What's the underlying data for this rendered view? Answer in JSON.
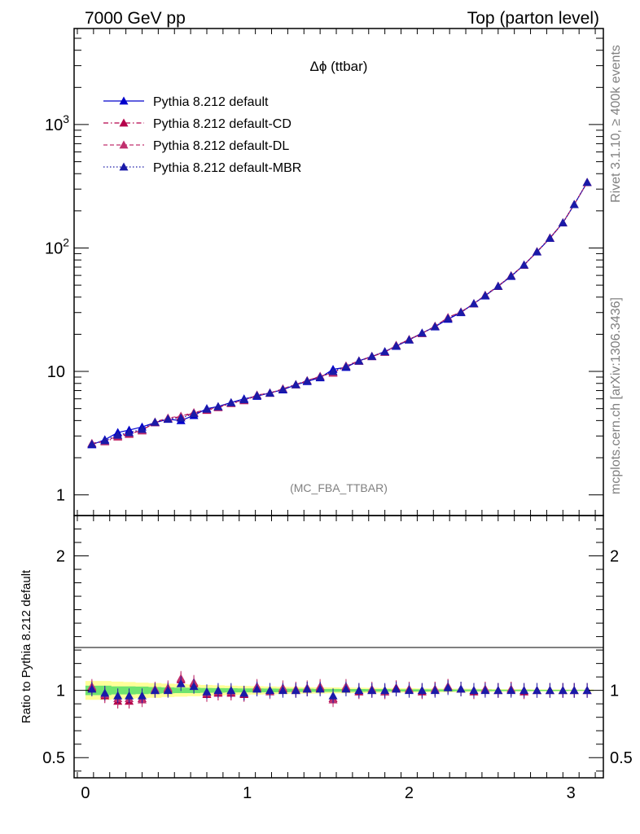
{
  "header": {
    "left": "7000 GeV pp",
    "right": "Top (parton level)"
  },
  "side_labels": {
    "rivet": "Rivet 3.1.10, ≥ 400k events",
    "mcplots": "mcplots.cern.ch [arXiv:1306.3436]"
  },
  "chart_data": {
    "type": "line",
    "title": "Δϕ (ttbar)",
    "annotation": "(MC_FBA_TTBAR)",
    "xlabel": "",
    "ylabel": "",
    "ratio_ylabel": "Ratio to Pythia 8.212 default",
    "yscale": "log",
    "xlim": [
      -0.07,
      3.2
    ],
    "ylim": [
      0.68,
      6000
    ],
    "ratio_ylim": [
      0.35,
      2.3
    ],
    "x_ticks": [
      "0",
      "1",
      "2",
      "3"
    ],
    "y_ticks": [
      {
        "value": 1,
        "label": "1"
      },
      {
        "value": 10,
        "label": "10"
      },
      {
        "value": 100,
        "label": "10",
        "exp": "2"
      },
      {
        "value": 1000,
        "label": "10",
        "exp": "3"
      }
    ],
    "ratio_y_ticks": [
      "0.5",
      "1",
      "2"
    ],
    "legend_position": "top-left",
    "x": [
      0.04,
      0.12,
      0.2,
      0.27,
      0.35,
      0.43,
      0.51,
      0.59,
      0.67,
      0.75,
      0.82,
      0.9,
      0.98,
      1.06,
      1.14,
      1.22,
      1.3,
      1.37,
      1.45,
      1.53,
      1.61,
      1.69,
      1.77,
      1.85,
      1.92,
      2.0,
      2.08,
      2.16,
      2.24,
      2.32,
      2.4,
      2.47,
      2.55,
      2.63,
      2.71,
      2.79,
      2.87,
      2.95,
      3.02,
      3.1
    ],
    "series": [
      {
        "name": "Pythia 8.212 default",
        "color": "#0000cc",
        "dash": "solid",
        "values": [
          2.55,
          2.8,
          3.2,
          3.35,
          3.55,
          3.85,
          4.1,
          4.0,
          4.4,
          5.0,
          5.2,
          5.6,
          6.0,
          6.3,
          6.7,
          7.1,
          7.8,
          8.3,
          8.9,
          10.4,
          10.8,
          12.2,
          13.2,
          14.5,
          16.0,
          18.0,
          20.5,
          23.0,
          26.5,
          30.0,
          35.5,
          41.0,
          49.0,
          59.0,
          73.0,
          93.0,
          120.0,
          160.0,
          225.0,
          340.0
        ],
        "ratio": [
          1.0,
          1.0,
          1.0,
          1.0,
          1.0,
          1.0,
          1.0,
          1.0,
          1.0,
          1.0,
          1.0,
          1.0,
          1.0,
          1.0,
          1.0,
          1.0,
          1.0,
          1.0,
          1.0,
          1.0,
          1.0,
          1.0,
          1.0,
          1.0,
          1.0,
          1.0,
          1.0,
          1.0,
          1.0,
          1.0,
          1.0,
          1.0,
          1.0,
          1.0,
          1.0,
          1.0,
          1.0,
          1.0,
          1.0,
          1.0
        ]
      },
      {
        "name": "Pythia 8.212 default-CD",
        "color": "#b5004b",
        "dash": "dashdot",
        "values": [
          2.6,
          2.7,
          2.95,
          3.1,
          3.35,
          3.85,
          4.15,
          4.3,
          4.6,
          4.85,
          5.1,
          5.5,
          5.8,
          6.4,
          6.7,
          7.2,
          7.8,
          8.4,
          9.1,
          9.8,
          11.0,
          12.1,
          13.2,
          14.3,
          16.3,
          18.1,
          20.3,
          23.3,
          27.3,
          30.3,
          35.3,
          41.4,
          49.0,
          59.6,
          72.6,
          93.3,
          120.6,
          160.0,
          225.0,
          340.0
        ],
        "ratio": [
          1.02,
          0.96,
          0.92,
          0.92,
          0.94,
          1.0,
          1.01,
          1.08,
          1.05,
          0.97,
          0.98,
          0.98,
          0.97,
          1.02,
          1.0,
          1.01,
          1.0,
          1.01,
          1.02,
          0.94,
          1.02,
          0.99,
          1.0,
          0.99,
          1.02,
          1.01,
          0.99,
          1.01,
          1.03,
          1.01,
          0.99,
          1.01,
          1.0,
          1.01,
          0.99,
          1.0,
          1.0,
          1.0,
          1.0,
          1.0
        ]
      },
      {
        "name": "Pythia 8.212 default-DL",
        "color": "#c0306e",
        "dash": "dash",
        "values": [
          2.62,
          2.72,
          3.0,
          3.15,
          3.3,
          3.9,
          4.2,
          4.35,
          4.65,
          4.9,
          5.15,
          5.55,
          5.85,
          6.45,
          6.65,
          7.25,
          7.85,
          8.45,
          9.15,
          9.7,
          11.1,
          12.2,
          13.3,
          14.4,
          16.2,
          18.2,
          20.4,
          23.2,
          27.4,
          30.4,
          35.4,
          41.5,
          49.2,
          59.8,
          72.8,
          93.5,
          120.8,
          160.2,
          225.5,
          341.0
        ],
        "ratio": [
          1.03,
          0.97,
          0.94,
          0.94,
          0.93,
          1.01,
          1.02,
          1.09,
          1.06,
          0.98,
          0.99,
          0.99,
          0.98,
          1.03,
          0.99,
          1.02,
          1.01,
          1.02,
          1.03,
          0.93,
          1.03,
          1.0,
          1.01,
          0.99,
          1.01,
          1.01,
          1.0,
          1.01,
          1.03,
          1.01,
          1.0,
          1.01,
          1.0,
          1.01,
          1.0,
          1.0,
          1.0,
          1.0,
          1.0,
          1.0
        ]
      },
      {
        "name": "Pythia 8.212 default-MBR",
        "color": "#1a1aa8",
        "dash": "dot",
        "values": [
          2.58,
          2.75,
          3.05,
          3.2,
          3.4,
          3.88,
          4.12,
          4.2,
          4.55,
          4.95,
          5.18,
          5.58,
          5.9,
          6.38,
          6.68,
          7.15,
          7.82,
          8.38,
          9.0,
          10.0,
          10.95,
          12.15,
          13.25,
          14.45,
          16.1,
          18.05,
          20.45,
          23.1,
          26.9,
          30.2,
          35.4,
          41.2,
          49.1,
          59.3,
          72.8,
          93.2,
          120.3,
          160.1,
          225.2,
          340.5
        ],
        "ratio": [
          1.01,
          0.98,
          0.96,
          0.96,
          0.96,
          1.0,
          1.0,
          1.05,
          1.03,
          0.99,
          1.0,
          1.0,
          0.98,
          1.01,
          1.0,
          1.0,
          1.0,
          1.01,
          1.01,
          0.96,
          1.01,
          1.0,
          1.0,
          1.0,
          1.01,
          1.0,
          1.0,
          1.0,
          1.02,
          1.01,
          1.0,
          1.0,
          1.0,
          1.0,
          1.0,
          1.0,
          1.0,
          1.0,
          1.0,
          1.0
        ]
      }
    ],
    "ratio_bands": {
      "green_half_width": [
        0.035,
        0.035,
        0.03,
        0.03,
        0.028,
        0.025,
        0.022,
        0.02,
        0.02,
        0.018,
        0.017,
        0.016,
        0.015,
        0.015,
        0.014,
        0.013,
        0.012,
        0.012,
        0.011,
        0.011,
        0.01,
        0.01,
        0.009,
        0.009,
        0.008,
        0.008,
        0.008,
        0.007,
        0.007,
        0.006,
        0.006,
        0.006,
        0.005,
        0.005,
        0.005,
        0.004,
        0.004,
        0.004,
        0.003,
        0.003
      ],
      "yellow_half_width": [
        0.07,
        0.07,
        0.065,
        0.062,
        0.058,
        0.055,
        0.05,
        0.047,
        0.044,
        0.04,
        0.038,
        0.035,
        0.033,
        0.031,
        0.029,
        0.027,
        0.025,
        0.024,
        0.023,
        0.022,
        0.021,
        0.02,
        0.019,
        0.018,
        0.017,
        0.016,
        0.015,
        0.014,
        0.013,
        0.013,
        0.012,
        0.011,
        0.01,
        0.009,
        0.009,
        0.008,
        0.008,
        0.007,
        0.006,
        0.006
      ],
      "green_color": "#6fe36f",
      "yellow_color": "#ffff99"
    }
  }
}
